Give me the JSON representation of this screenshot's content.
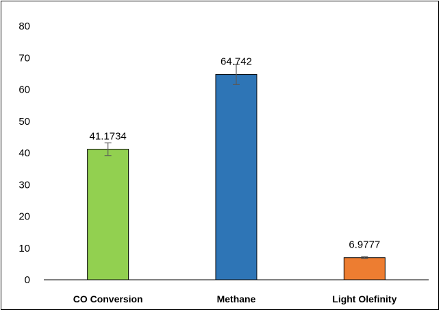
{
  "chart_data": {
    "type": "bar",
    "title": "",
    "xlabel": "",
    "ylabel": "",
    "categories": [
      "CO Conversion",
      "Methane",
      "Light Olefinity"
    ],
    "values": [
      41.1734,
      64.742,
      6.9777
    ],
    "data_labels": [
      "41.1734",
      "64.742",
      "6.9777"
    ],
    "error": [
      2.0,
      3.2,
      0.3
    ],
    "colors": [
      "#92d050",
      "#2e75b6",
      "#ed7d31"
    ],
    "bar_edge_color": "#000000",
    "ylim": [
      0,
      80
    ],
    "yticks": [
      0,
      10,
      20,
      30,
      40,
      50,
      60,
      70,
      80
    ],
    "grid": false,
    "legend": "none"
  }
}
